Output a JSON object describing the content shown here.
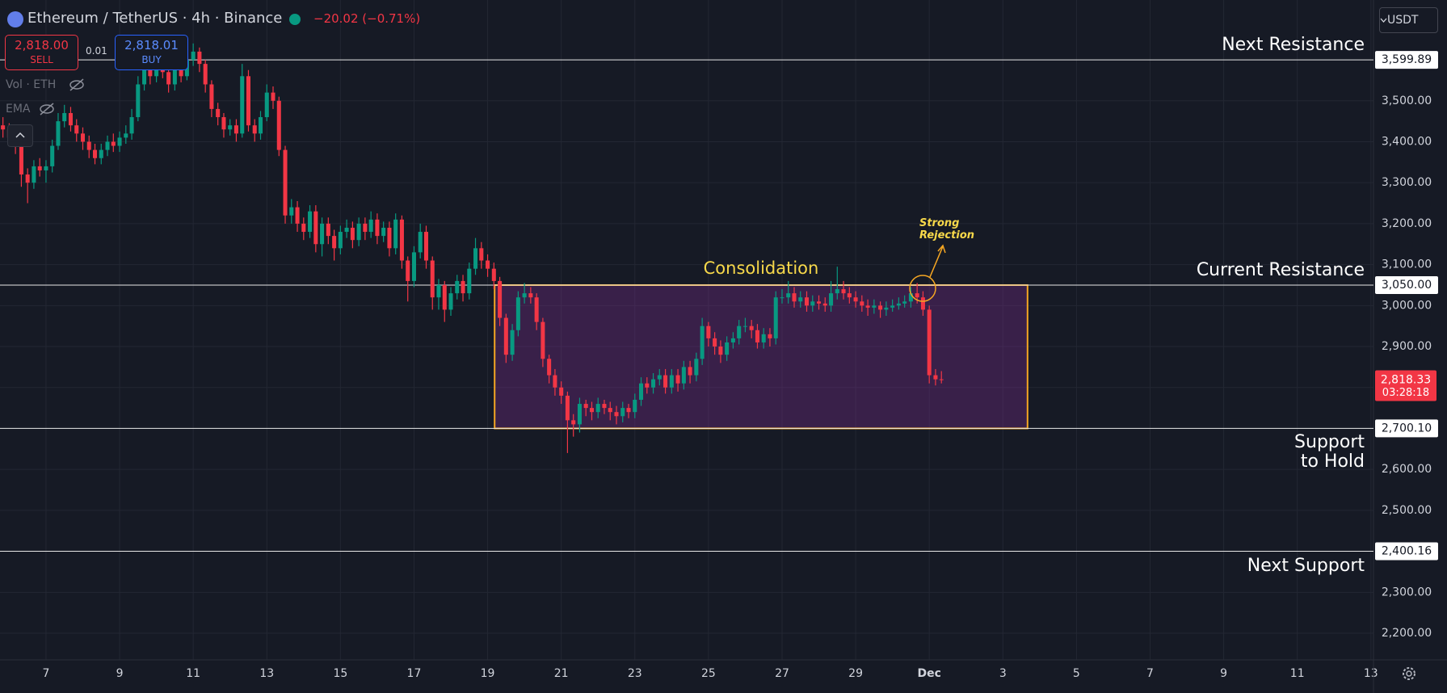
{
  "header": {
    "symbol": "Ethereum / TetherUS · 4h · Binance",
    "change": "−20.02 (−0.71%)",
    "sell_price": "2,818.00",
    "sell": "SELL",
    "spread": "0.01",
    "buy_price": "2,818.01",
    "buy": "BUY",
    "indicators": [
      "Vol · ETH",
      "EMA"
    ],
    "currency": "USDT"
  },
  "chart_data": {
    "type": "candlestick",
    "up_color": "#089981",
    "down_color": "#f23645",
    "grid": true,
    "xlim": [
      5.75,
      43.07
    ],
    "ylim": [
      2135,
      3746
    ],
    "xticks": [
      7,
      9,
      11,
      13,
      15,
      17,
      19,
      21,
      23,
      25,
      27,
      29,
      {
        "value": 31,
        "label": "Dec"
      },
      {
        "value": 33,
        "label": "3"
      },
      {
        "value": 35,
        "label": "5"
      },
      {
        "value": 37,
        "label": "7"
      },
      {
        "value": 39,
        "label": "9"
      },
      {
        "value": 41,
        "label": "11"
      },
      {
        "value": 43,
        "label": "13"
      }
    ],
    "yticks": [
      {
        "value": 2200,
        "label": "2,200.00"
      },
      {
        "value": 2300,
        "label": "2,300.00"
      },
      {
        "value": 2400,
        "label": "2,400.00"
      },
      {
        "value": 2500,
        "label": "2,500.00"
      },
      {
        "value": 2600,
        "label": "2,600.00"
      },
      {
        "value": 2700,
        "label": "2,700.00"
      },
      {
        "value": 2800,
        "label": "2,800.00"
      },
      {
        "value": 2900,
        "label": "2,900.00"
      },
      {
        "value": 3000,
        "label": "3,000.00"
      },
      {
        "value": 3100,
        "label": "3,100.00"
      },
      {
        "value": 3200,
        "label": "3,200.00"
      },
      {
        "value": 3300,
        "label": "3,300.00"
      },
      {
        "value": 3400,
        "label": "3,400.00"
      },
      {
        "value": 3500,
        "label": "3,500.00"
      }
    ],
    "candles": {
      "x": [
        5.83,
        6,
        6.17,
        6.33,
        6.5,
        6.67,
        6.83,
        7,
        7.17,
        7.33,
        7.5,
        7.67,
        7.83,
        8,
        8.17,
        8.33,
        8.5,
        8.67,
        8.83,
        9,
        9.17,
        9.33,
        9.5,
        9.67,
        9.83,
        10,
        10.17,
        10.33,
        10.5,
        10.67,
        10.83,
        11,
        11.17,
        11.33,
        11.5,
        11.67,
        11.83,
        12,
        12.17,
        12.33,
        12.5,
        12.67,
        12.83,
        13,
        13.17,
        13.33,
        13.5,
        13.67,
        13.83,
        14,
        14.17,
        14.33,
        14.5,
        14.67,
        14.83,
        15,
        15.17,
        15.33,
        15.5,
        15.67,
        15.83,
        16,
        16.17,
        16.33,
        16.5,
        16.67,
        16.83,
        17,
        17.17,
        17.33,
        17.5,
        17.67,
        17.83,
        18,
        18.17,
        18.33,
        18.5,
        18.67,
        18.83,
        19,
        19.17,
        19.33,
        19.5,
        19.67,
        19.83,
        20,
        20.17,
        20.33,
        20.5,
        20.67,
        20.83,
        21,
        21.17,
        21.33,
        21.5,
        21.67,
        21.83,
        22,
        22.17,
        22.33,
        22.5,
        22.67,
        22.83,
        23,
        23.17,
        23.33,
        23.5,
        23.67,
        23.83,
        24,
        24.17,
        24.33,
        24.5,
        24.67,
        24.83,
        25,
        25.17,
        25.33,
        25.5,
        25.67,
        25.83,
        26,
        26.17,
        26.33,
        26.5,
        26.67,
        26.83,
        27,
        27.17,
        27.33,
        27.5,
        27.67,
        27.83,
        28,
        28.17,
        28.33,
        28.5,
        28.67,
        28.83,
        29,
        29.17,
        29.33,
        29.5,
        29.67,
        29.83,
        30,
        30.17,
        30.33,
        30.5,
        30.67,
        30.83,
        31,
        31.17,
        31.33
      ],
      "open": [
        3440,
        3430,
        3410,
        3390,
        3320,
        3300,
        3340,
        3330,
        3340,
        3390,
        3450,
        3470,
        3440,
        3420,
        3400,
        3380,
        3360,
        3380,
        3400,
        3390,
        3410,
        3420,
        3460,
        3540,
        3580,
        3560,
        3600,
        3570,
        3540,
        3580,
        3560,
        3600,
        3620,
        3590,
        3540,
        3480,
        3460,
        3430,
        3440,
        3420,
        3560,
        3440,
        3420,
        3460,
        3520,
        3500,
        3380,
        3220,
        3240,
        3200,
        3180,
        3230,
        3150,
        3200,
        3170,
        3140,
        3180,
        3190,
        3160,
        3200,
        3180,
        3210,
        3170,
        3190,
        3140,
        3210,
        3110,
        3060,
        3130,
        3180,
        3110,
        3020,
        3050,
        2990,
        3030,
        3060,
        3030,
        3090,
        3140,
        3110,
        3090,
        3060,
        2970,
        2880,
        2940,
        3020,
        3030,
        3020,
        2960,
        2870,
        2830,
        2800,
        2780,
        2720,
        2710,
        2760,
        2750,
        2740,
        2760,
        2750,
        2740,
        2730,
        2750,
        2740,
        2770,
        2810,
        2800,
        2820,
        2830,
        2800,
        2830,
        2810,
        2850,
        2830,
        2870,
        2950,
        2920,
        2900,
        2880,
        2910,
        2920,
        2950,
        2950,
        2940,
        2910,
        2930,
        2920,
        3020,
        3020,
        3030,
        3010,
        3020,
        3000,
        3010,
        3005,
        3000,
        3030,
        3040,
        3030,
        3020,
        3010,
        3000,
        2995,
        3000,
        2990,
        2995,
        3000,
        3005,
        3010,
        3030,
        3020,
        2990,
        2830,
        2820
      ],
      "high": [
        3460,
        3445,
        3425,
        3400,
        3335,
        3355,
        3360,
        3355,
        3405,
        3470,
        3490,
        3485,
        3455,
        3435,
        3415,
        3395,
        3395,
        3415,
        3420,
        3425,
        3440,
        3480,
        3560,
        3600,
        3595,
        3620,
        3615,
        3585,
        3600,
        3595,
        3640,
        3640,
        3630,
        3600,
        3550,
        3495,
        3470,
        3455,
        3455,
        3590,
        3575,
        3455,
        3475,
        3540,
        3535,
        3510,
        3390,
        3260,
        3255,
        3215,
        3245,
        3245,
        3215,
        3215,
        3185,
        3195,
        3210,
        3205,
        3215,
        3215,
        3230,
        3225,
        3205,
        3205,
        3225,
        3220,
        3120,
        3145,
        3200,
        3195,
        3120,
        3065,
        3060,
        3045,
        3075,
        3075,
        3105,
        3165,
        3155,
        3125,
        3105,
        3070,
        2980,
        2955,
        3035,
        3055,
        3045,
        3030,
        2970,
        2880,
        2845,
        2815,
        2790,
        2735,
        2775,
        2770,
        2765,
        2775,
        2770,
        2765,
        2755,
        2765,
        2760,
        2785,
        2825,
        2825,
        2835,
        2845,
        2845,
        2845,
        2845,
        2865,
        2865,
        2885,
        2970,
        2960,
        2935,
        2915,
        2925,
        2935,
        2965,
        2970,
        2965,
        2955,
        2945,
        2945,
        3035,
        3040,
        3060,
        3045,
        3035,
        3035,
        3025,
        3025,
        3020,
        3060,
        3095,
        3060,
        3045,
        3035,
        3025,
        3015,
        3015,
        3010,
        3010,
        3015,
        3020,
        3025,
        3045,
        3055,
        3035,
        3000,
        2845,
        2840
      ],
      "low": [
        3410,
        3395,
        3370,
        3290,
        3250,
        3285,
        3315,
        3300,
        3325,
        3380,
        3435,
        3425,
        3400,
        3380,
        3360,
        3345,
        3345,
        3365,
        3375,
        3375,
        3395,
        3405,
        3450,
        3525,
        3540,
        3545,
        3555,
        3520,
        3525,
        3545,
        3550,
        3585,
        3570,
        3520,
        3460,
        3440,
        3410,
        3415,
        3400,
        3410,
        3425,
        3400,
        3405,
        3450,
        3480,
        3365,
        3200,
        3200,
        3180,
        3160,
        3165,
        3130,
        3120,
        3150,
        3110,
        3125,
        3165,
        3140,
        3145,
        3160,
        3165,
        3150,
        3155,
        3120,
        3125,
        3090,
        3010,
        3045,
        3115,
        3090,
        2990,
        2990,
        2960,
        2975,
        3015,
        3010,
        3015,
        3075,
        3090,
        3070,
        3040,
        2950,
        2860,
        2865,
        2925,
        3005,
        3005,
        2940,
        2850,
        2810,
        2780,
        2760,
        2640,
        2680,
        2690,
        2730,
        2720,
        2725,
        2735,
        2720,
        2710,
        2715,
        2725,
        2725,
        2755,
        2785,
        2785,
        2805,
        2785,
        2785,
        2790,
        2795,
        2810,
        2815,
        2855,
        2900,
        2880,
        2860,
        2865,
        2895,
        2905,
        2935,
        2920,
        2895,
        2895,
        2900,
        2905,
        3005,
        3005,
        2995,
        2995,
        2985,
        2985,
        2990,
        2985,
        2985,
        3015,
        3015,
        3005,
        2995,
        2985,
        2975,
        2980,
        2970,
        2975,
        2985,
        2990,
        2995,
        2995,
        3005,
        2975,
        2810,
        2805,
        2810
      ],
      "close": [
        3430,
        3410,
        3390,
        3320,
        3300,
        3340,
        3330,
        3340,
        3390,
        3450,
        3470,
        3440,
        3420,
        3400,
        3380,
        3360,
        3380,
        3400,
        3390,
        3410,
        3420,
        3460,
        3540,
        3580,
        3560,
        3600,
        3570,
        3540,
        3580,
        3560,
        3600,
        3620,
        3590,
        3540,
        3480,
        3460,
        3430,
        3440,
        3420,
        3560,
        3440,
        3420,
        3460,
        3520,
        3500,
        3380,
        3220,
        3240,
        3200,
        3180,
        3230,
        3150,
        3200,
        3170,
        3140,
        3180,
        3190,
        3160,
        3200,
        3180,
        3210,
        3170,
        3190,
        3140,
        3210,
        3110,
        3060,
        3130,
        3180,
        3110,
        3020,
        3050,
        2990,
        3030,
        3060,
        3030,
        3090,
        3140,
        3110,
        3090,
        3060,
        2970,
        2880,
        2940,
        3020,
        3030,
        3020,
        2960,
        2870,
        2830,
        2800,
        2780,
        2720,
        2710,
        2760,
        2750,
        2740,
        2760,
        2750,
        2740,
        2730,
        2750,
        2740,
        2770,
        2810,
        2800,
        2820,
        2830,
        2800,
        2830,
        2810,
        2850,
        2830,
        2870,
        2950,
        2920,
        2900,
        2880,
        2910,
        2920,
        2950,
        2950,
        2940,
        2910,
        2930,
        2920,
        3020,
        3020,
        3030,
        3010,
        3020,
        3000,
        3010,
        3005,
        3000,
        3030,
        3040,
        3030,
        3020,
        3010,
        3000,
        2995,
        3000,
        2990,
        2995,
        3000,
        3005,
        3010,
        3030,
        3020,
        2990,
        2830,
        2820,
        2818.33
      ]
    },
    "levels": [
      {
        "name": "Next Resistance",
        "value": 3599.89,
        "label": "3,599.89"
      },
      {
        "name": "Current Resistance",
        "value": 3050,
        "label": "3,050.00"
      },
      {
        "name": "Support to Hold",
        "value": 2700.1,
        "label": "2,700.10"
      },
      {
        "name": "Next Support",
        "value": 2400.16,
        "label": "2,400.16"
      }
    ],
    "zone": {
      "label": "Consolidation",
      "x": [
        19.19,
        33.67
      ],
      "y": [
        2700.1,
        3050
      ]
    },
    "annotation": {
      "text": "Strong Rejection",
      "x": 30.82,
      "y": 3042
    },
    "last_price": {
      "value": 2818.33,
      "label": "2,818.33",
      "countdown": "03:28:18"
    }
  }
}
